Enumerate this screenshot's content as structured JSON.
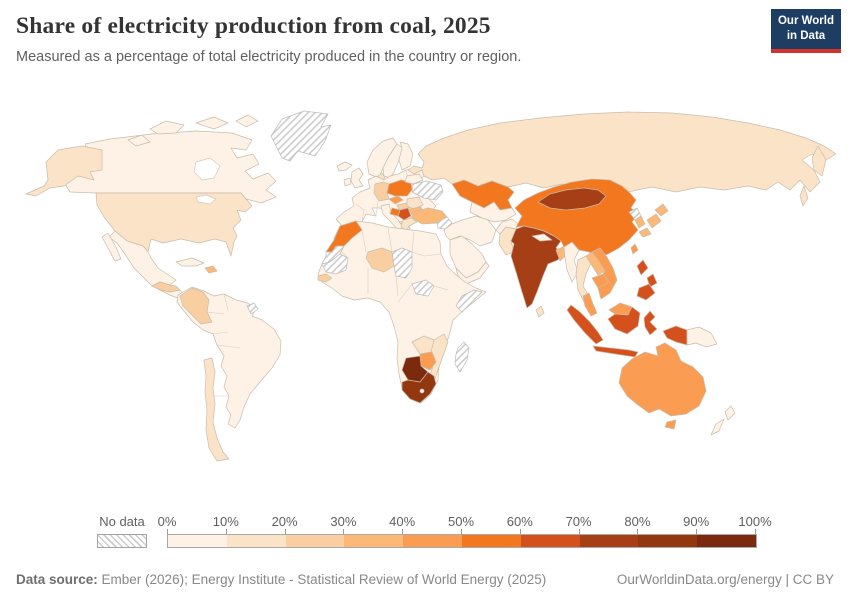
{
  "header": {
    "title": "Share of electricity production from coal, 2025",
    "subtitle": "Measured as a percentage of total electricity produced in the country or region.",
    "logo": {
      "line1": "Our World",
      "line2": "in Data",
      "bg_color": "#1d3d63",
      "accent_color": "#d4332c"
    }
  },
  "legend": {
    "no_data_label": "No data",
    "tick_labels": [
      "0%",
      "10%",
      "20%",
      "30%",
      "40%",
      "50%",
      "60%",
      "70%",
      "80%",
      "90%",
      "100%"
    ],
    "colors": [
      "#FEF2E6",
      "#FBE3C8",
      "#F9CFA2",
      "#FBB877",
      "#FA9C52",
      "#F2771F",
      "#D4501C",
      "#A63E16",
      "#93370F",
      "#7C2A0E"
    ]
  },
  "footer": {
    "source_label": "Data source:",
    "source_text": " Ember (2026); Energy Institute - Statistical Review of World Energy (2025)",
    "url_text": "OurWorldinData.org/energy | CC BY"
  },
  "chart_data": {
    "type": "heatmap",
    "subtype": "choropleth-world-map",
    "title": "Share of electricity production from coal, 2025",
    "unit": "% of total electricity production",
    "legend_position": "bottom",
    "scale": {
      "min": 0,
      "max": 100,
      "bucket_size": 10,
      "colors": [
        "#FEF2E6",
        "#FBE3C8",
        "#F9CFA2",
        "#FBB877",
        "#FA9C52",
        "#F2771F",
        "#D4501C",
        "#A63E16",
        "#93370F",
        "#7C2A0E"
      ],
      "no_data_fill": "diagonal-hatch"
    },
    "values": {
      "Canada": 6,
      "United States": 15,
      "Mexico": 4,
      "Honduras": 26,
      "Panama": 0,
      "Cuba": 1,
      "Dominican Republic": 34,
      "Other South America": 2,
      "Colombia": 22,
      "Chile": 16,
      "Iceland": 0,
      "United Kingdom": 2,
      "Ireland": 4,
      "Norway": 0,
      "Sweden": 1,
      "Finland": 8,
      "Denmark": 10,
      "Other Europe": 1,
      "Germany": 22,
      "Poland": 57,
      "Czechia": 41,
      "Hungary": 21,
      "Romania": 12,
      "Serbia": 62,
      "Bosnia and Herzegovina": 58,
      "Bulgaria": 31,
      "Greece": 18,
      "Belarus": 9,
      "Italy": 4,
      "Russia": 16,
      "Kazakhstan": 58,
      "Other Central Asia": 7,
      "Turkey": 35,
      "Saudi Arabia": 0,
      "Oman": 0,
      "Iran": 1,
      "Afghanistan": 3,
      "Pakistan": 13,
      "India": 73,
      "Nepal": 1,
      "Bangladesh": 32,
      "Sri Lanka": 15,
      "Myanmar": 8,
      "China": 58,
      "Mongolia": 76,
      "South Korea": 32,
      "Japan": 30,
      "Taiwan": 42,
      "Thailand": 16,
      "Laos": 32,
      "Cambodia": 40,
      "Vietnam": 47,
      "Malaysia": 45,
      "Indonesia": 62,
      "Philippines": 61,
      "Papua New Guinea": 0,
      "Australia": 46,
      "New Zealand": 7,
      "Other Africa": 1,
      "Morocco": 58,
      "Senegal": 24,
      "Niger": 27,
      "Zambia": 12,
      "Mozambique": 12,
      "Zimbabwe": 45,
      "Botswana": 97,
      "South Africa": 85
    },
    "no_data": [
      "Greenland",
      "Ukraine",
      "Syria",
      "Western Sahara",
      "Mauritania",
      "Chad",
      "South Sudan",
      "Somalia",
      "Madagascar",
      "French Guiana",
      "North Korea"
    ]
  }
}
